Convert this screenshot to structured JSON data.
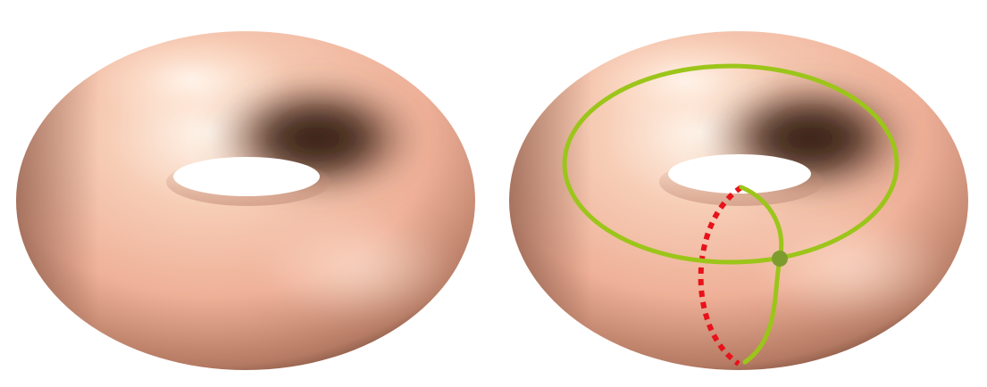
{
  "figure": {
    "panels": [
      {
        "name": "plain-torus",
        "object": "torus",
        "curves": []
      },
      {
        "name": "torus-with-generating-loops",
        "object": "torus",
        "curves": [
          {
            "name": "longitude-loop",
            "style": "solid",
            "color": "#9CC51A"
          },
          {
            "name": "meridian-loop-front",
            "style": "solid",
            "color": "#9CC51A"
          },
          {
            "name": "meridian-loop-back",
            "style": "dotted",
            "color": "#E8121B"
          }
        ],
        "base_point": {
          "name": "intersection-point",
          "color": "#7E9C2E"
        }
      }
    ],
    "colors": {
      "surface_light": "#FFF1E6",
      "surface_mid": "#F2B9A0",
      "surface_dark": "#2E1A12",
      "hole_background": "#FFFFFF"
    }
  }
}
